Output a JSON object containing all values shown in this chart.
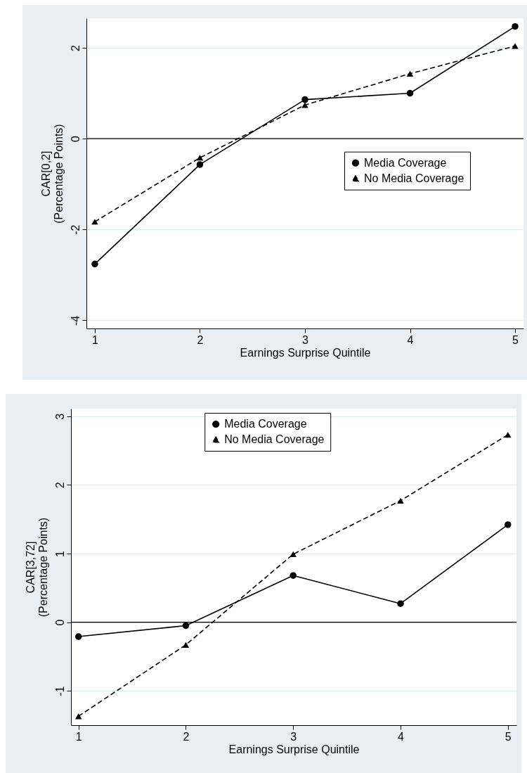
{
  "chart_data": [
    {
      "type": "line",
      "xlabel": "Earnings Surprise Quintile",
      "ylabel": "CAR[0,2]\n(Percentage Points)",
      "x": [
        1,
        2,
        3,
        4,
        5
      ],
      "series": [
        {
          "name": "Media Coverage",
          "color": "#000000",
          "marker": "circle",
          "line_style": "solid",
          "values": [
            -2.76,
            -0.57,
            0.86,
            1.0,
            2.47
          ]
        },
        {
          "name": "No Media Coverage",
          "color": "#000000",
          "marker": "triangle",
          "line_style": "dashed",
          "values": [
            -1.83,
            -0.42,
            0.74,
            1.43,
            2.04
          ]
        }
      ],
      "xlim": [
        0.92,
        5.08
      ],
      "xticks": [
        1,
        2,
        3,
        4,
        5
      ],
      "ylim": [
        -4.18,
        2.65
      ],
      "yticks": [
        -4,
        -2,
        0,
        2
      ],
      "grid": "y",
      "legend": "right",
      "ref_lines": [
        {
          "axis": "y",
          "value": 0,
          "color": "#000000"
        }
      ]
    },
    {
      "type": "line",
      "xlabel": "Earnings Surprise Quintile",
      "ylabel": "CAR[3,72]\n(Percentage Points)",
      "x": [
        1,
        2,
        3,
        4,
        5
      ],
      "series": [
        {
          "name": "Media Coverage",
          "color": "#000000",
          "marker": "circle",
          "line_style": "solid",
          "values": [
            -0.21,
            -0.05,
            0.68,
            0.27,
            1.42
          ]
        },
        {
          "name": "No Media Coverage",
          "color": "#000000",
          "marker": "triangle",
          "line_style": "dashed",
          "values": [
            -1.37,
            -0.33,
            0.99,
            1.77,
            2.73
          ]
        }
      ],
      "xlim": [
        0.93,
        5.08
      ],
      "xticks": [
        1,
        2,
        3,
        4,
        5
      ],
      "ylim": [
        -1.5,
        3.11
      ],
      "yticks": [
        -1,
        0,
        1,
        2,
        3
      ],
      "grid": "y",
      "legend": "top",
      "ref_lines": [
        {
          "axis": "y",
          "value": 0,
          "color": "#000000"
        }
      ]
    }
  ]
}
